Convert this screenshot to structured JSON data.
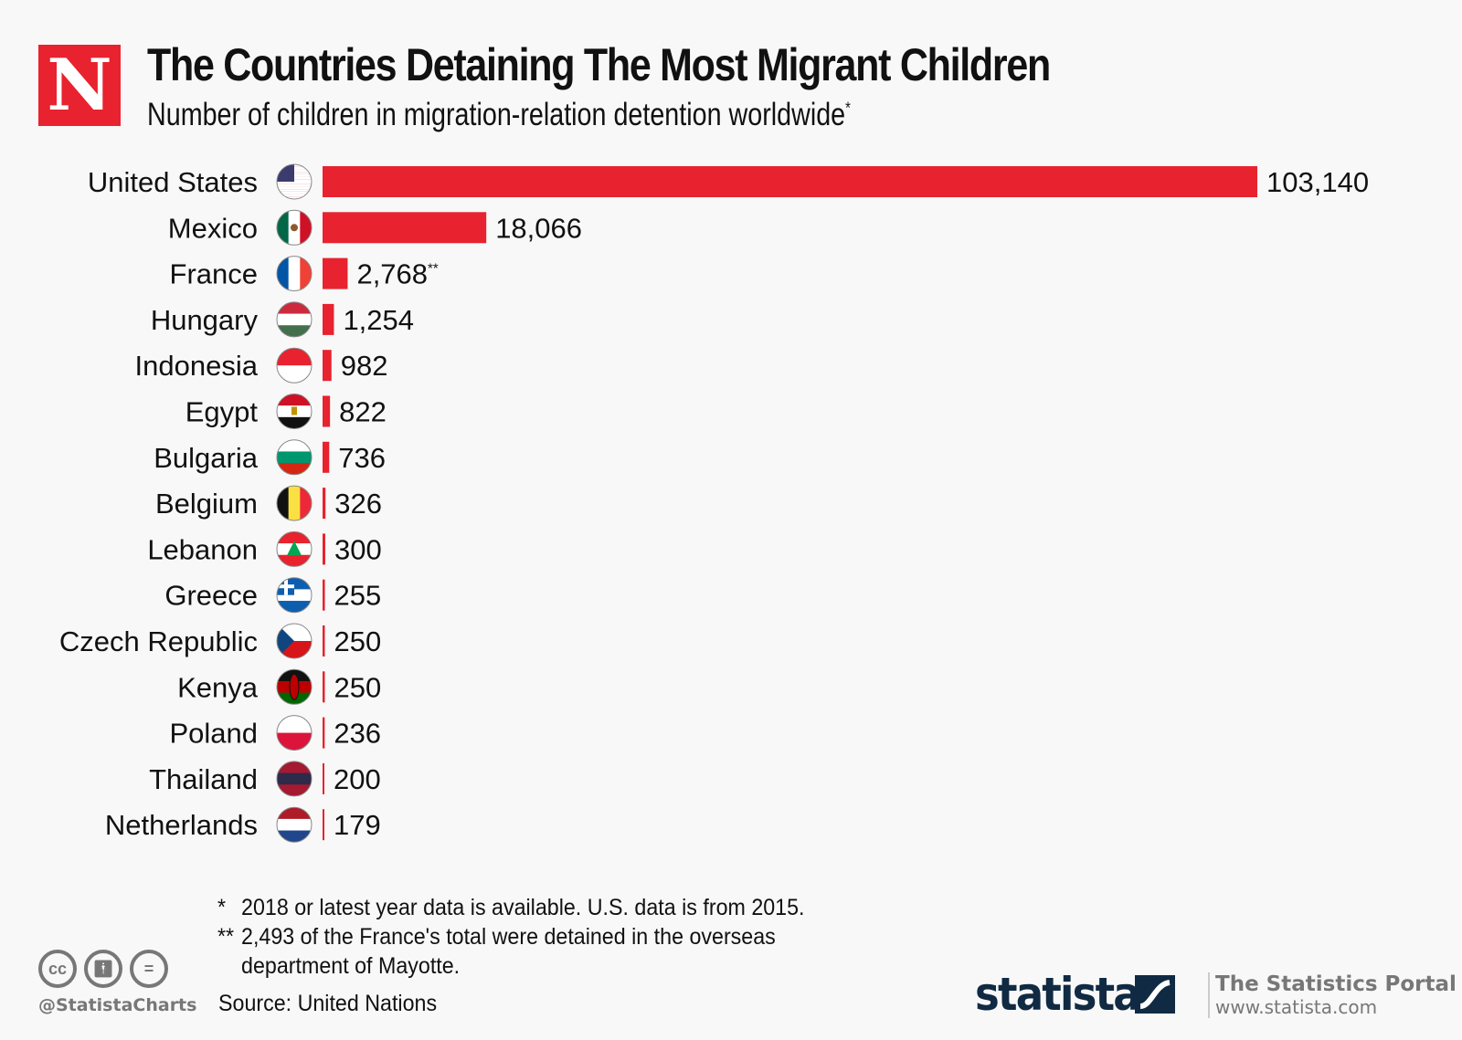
{
  "header": {
    "logo_letter": "N",
    "title": "The Countries Detaining The Most Migrant Children",
    "subtitle": "Number of children in migration-relation detention worldwide",
    "subtitle_mark": "*"
  },
  "colors": {
    "bar": "#e8222e",
    "logo": "#e8222e",
    "statista": "#102a43"
  },
  "chart_data": {
    "type": "bar",
    "orientation": "horizontal",
    "title": "The Countries Detaining The Most Migrant Children",
    "subtitle": "Number of children in migration-relation detention worldwide*",
    "categories": [
      "United States",
      "Mexico",
      "France",
      "Hungary",
      "Indonesia",
      "Egypt",
      "Bulgaria",
      "Belgium",
      "Lebanon",
      "Greece",
      "Czech Republic",
      "Kenya",
      "Poland",
      "Thailand",
      "Netherlands"
    ],
    "values": [
      103140,
      18066,
      2768,
      1254,
      982,
      822,
      736,
      326,
      300,
      255,
      250,
      250,
      236,
      200,
      179
    ],
    "value_labels": [
      "103,140",
      "18,066",
      "2,768",
      "1,254",
      "982",
      "822",
      "736",
      "326",
      "300",
      "255",
      "250",
      "250",
      "236",
      "200",
      "179"
    ],
    "value_marks": [
      "",
      "",
      "**",
      "",
      "",
      "",
      "",
      "",
      "",
      "",
      "",
      "",
      "",
      "",
      ""
    ],
    "flags": [
      "us",
      "mx",
      "fr",
      "hu",
      "id",
      "eg",
      "bg",
      "be",
      "lb",
      "gr",
      "cz",
      "ke",
      "pl",
      "th",
      "nl"
    ],
    "xlabel": "",
    "ylabel": "",
    "xlim": [
      0,
      103140
    ],
    "grid": false,
    "legend": "none"
  },
  "footnotes": [
    {
      "mark": "*",
      "text": "2018 or latest year data is available. U.S. data is from 2015."
    },
    {
      "mark": "**",
      "text": "2,493 of the France's total were detained in the overseas department of Mayotte."
    }
  ],
  "source": "Source: United Nations",
  "footer": {
    "handle": "@StatistaCharts",
    "license_icons": [
      "cc-icon",
      "by-icon",
      "nd-icon"
    ],
    "brand": "statista",
    "portal_title": "The Statistics Portal",
    "portal_url": "www.statista.com"
  }
}
